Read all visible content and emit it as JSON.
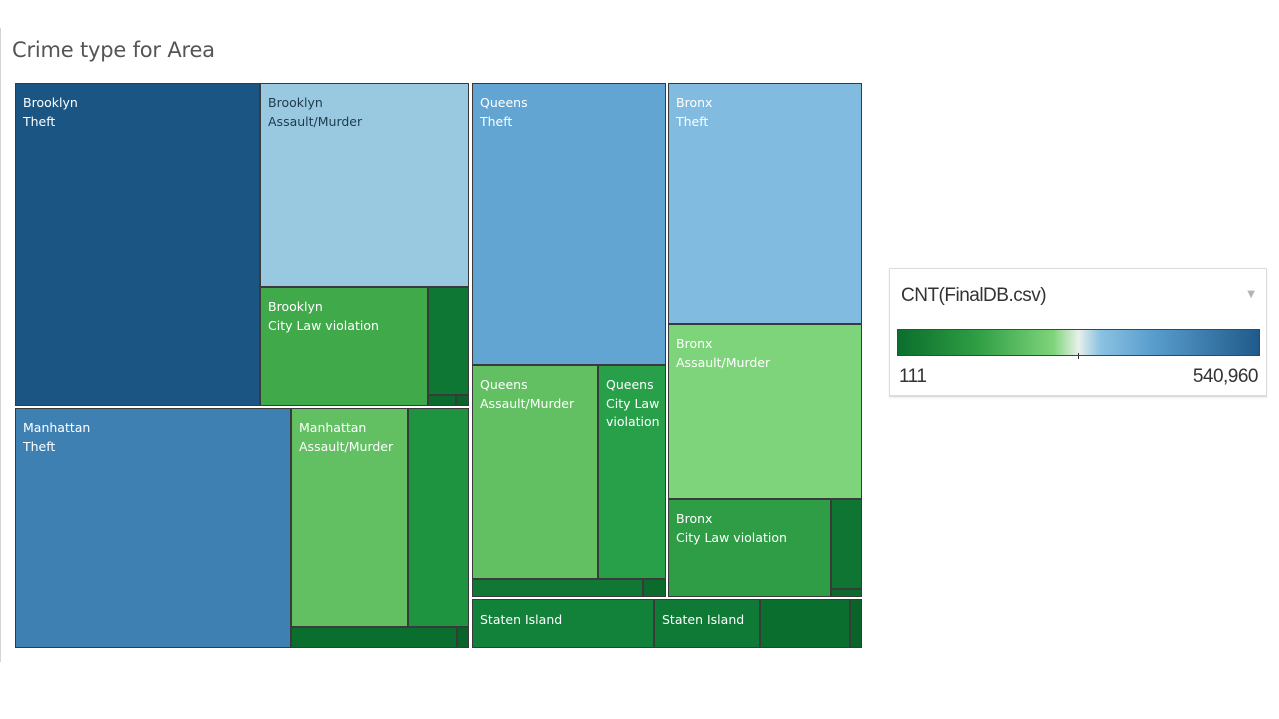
{
  "chart_data": {
    "type": "treemap",
    "title": "Crime type for Area",
    "color_measure": "CNT(FinalDB.csv)",
    "color_range": {
      "min": "111",
      "max": "540,960"
    },
    "color_scale": [
      "#0a6e2d",
      "#2f9e44",
      "#7ed47a",
      "#e8f0ea",
      "#8cc2e2",
      "#5a9fcf",
      "#1f5a8a"
    ],
    "cells": [
      {
        "area": "Brooklyn",
        "crime": "Theft",
        "label": "Brooklyn\nTheft",
        "color": "#1b5583"
      },
      {
        "area": "Brooklyn",
        "crime": "Assault/Murder",
        "label": "Brooklyn\nAssault/Murder",
        "color": "#99c9e1"
      },
      {
        "area": "Brooklyn",
        "crime": "City Law violation",
        "label": "Brooklyn\nCity Law violation",
        "color": "#40a94a"
      },
      {
        "area": "Brooklyn",
        "crime": "",
        "label": "",
        "color": "#0d7733"
      },
      {
        "area": "Brooklyn",
        "crime": "",
        "label": "",
        "color": "#0a6b2c"
      },
      {
        "area": "Brooklyn",
        "crime": "",
        "label": "",
        "color": "#086428"
      },
      {
        "area": "Manhattan",
        "crime": "Theft",
        "label": "Manhattan\nTheft",
        "color": "#3f80b3"
      },
      {
        "area": "Manhattan",
        "crime": "Assault/Murder",
        "label": "Manhattan\nAssault/Murder",
        "color": "#62c063"
      },
      {
        "area": "Manhattan",
        "crime": "",
        "label": "",
        "color": "#1e9441"
      },
      {
        "area": "Manhattan",
        "crime": "",
        "label": "",
        "color": "#0a6f2e"
      },
      {
        "area": "Manhattan",
        "crime": "",
        "label": "",
        "color": "#086428"
      },
      {
        "area": "Queens",
        "crime": "Theft",
        "label": "Queens\nTheft",
        "color": "#62a5d2"
      },
      {
        "area": "Queens",
        "crime": "Assault/Murder",
        "label": "Queens\nAssault/Murder",
        "color": "#62c063"
      },
      {
        "area": "Queens",
        "crime": "City Law violation",
        "label": "Queens\nCity Law\nviolation",
        "color": "#28a04a"
      },
      {
        "area": "Queens",
        "crime": "",
        "label": "",
        "color": "#107834"
      },
      {
        "area": "Queens",
        "crime": "",
        "label": "",
        "color": "#0a6b2c"
      },
      {
        "area": "Bronx",
        "crime": "Theft",
        "label": "Bronx\nTheft",
        "color": "#82bbe0"
      },
      {
        "area": "Bronx",
        "crime": "Assault/Murder",
        "label": "Bronx\nAssault/Murder",
        "color": "#7ed47a"
      },
      {
        "area": "Bronx",
        "crime": "City Law violation",
        "label": "Bronx\nCity Law violation",
        "color": "#2e9d46"
      },
      {
        "area": "Bronx",
        "crime": "",
        "label": "",
        "color": "#0f7532"
      },
      {
        "area": "Bronx",
        "crime": "",
        "label": "",
        "color": "#0a6b2c"
      },
      {
        "area": "Staten Island",
        "crime": "",
        "label": "Staten Island",
        "color": "#12823a"
      },
      {
        "area": "Staten Island",
        "crime": "",
        "label": "Staten Island",
        "color": "#0e7a35"
      },
      {
        "area": "Staten Island",
        "crime": "",
        "label": "",
        "color": "#0a6f2e"
      },
      {
        "area": "Staten Island",
        "crime": "",
        "label": "",
        "color": "#086428"
      }
    ]
  }
}
